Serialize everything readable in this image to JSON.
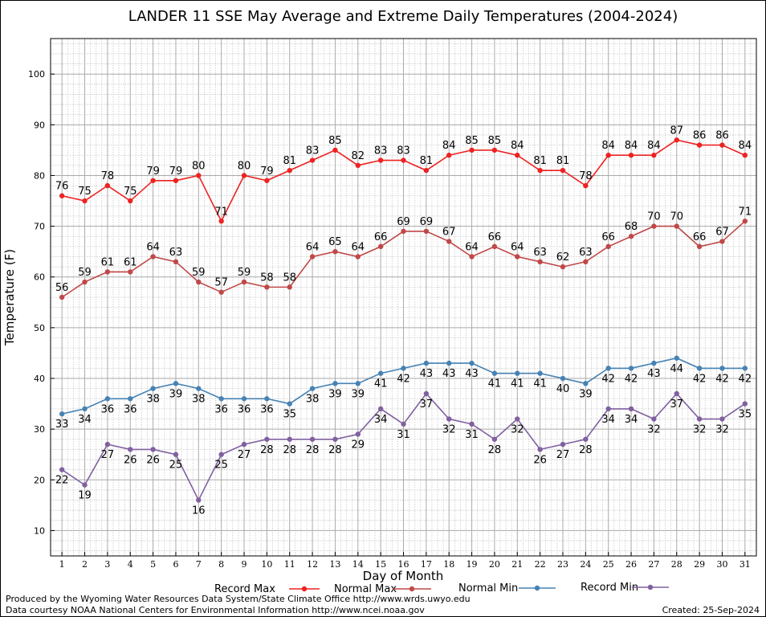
{
  "chart_data": {
    "type": "line",
    "title": "LANDER 11 SSE May Average and Extreme Daily Temperatures (2004-2024)",
    "xlabel": "Day of Month",
    "ylabel": "Temperature (F)",
    "x": [
      1,
      2,
      3,
      4,
      5,
      6,
      7,
      8,
      9,
      10,
      11,
      12,
      13,
      14,
      15,
      16,
      17,
      18,
      19,
      20,
      21,
      22,
      23,
      24,
      25,
      26,
      27,
      28,
      29,
      30,
      31
    ],
    "xlim": [
      0.5,
      31.5
    ],
    "ylim": [
      5,
      107
    ],
    "yticks": [
      10,
      20,
      30,
      40,
      50,
      60,
      70,
      80,
      90,
      100
    ],
    "grid": true,
    "legend_position": "bottom",
    "series": [
      {
        "name": "Record Max",
        "color": "#ee2222",
        "label_position": "above",
        "values": [
          76,
          75,
          78,
          75,
          79,
          79,
          80,
          71,
          80,
          79,
          81,
          83,
          85,
          82,
          83,
          83,
          81,
          84,
          85,
          85,
          84,
          81,
          81,
          78,
          84,
          84,
          84,
          87,
          86,
          86,
          84
        ]
      },
      {
        "name": "Normal Max",
        "color": "#c04848",
        "label_position": "above",
        "values": [
          56,
          59,
          61,
          61,
          64,
          63,
          59,
          57,
          59,
          58,
          58,
          64,
          65,
          64,
          66,
          69,
          69,
          67,
          64,
          66,
          64,
          63,
          62,
          63,
          66,
          68,
          70,
          70,
          66,
          67,
          71
        ]
      },
      {
        "name": "Normal Min",
        "color": "#4682b4",
        "label_position": "below",
        "values": [
          33,
          34,
          36,
          36,
          38,
          39,
          38,
          36,
          36,
          36,
          35,
          38,
          39,
          39,
          41,
          42,
          43,
          43,
          43,
          41,
          41,
          41,
          40,
          39,
          42,
          42,
          43,
          44,
          42,
          42,
          42
        ]
      },
      {
        "name": "Record Min",
        "color": "#8060a0",
        "label_position": "below",
        "values": [
          22,
          19,
          27,
          26,
          26,
          25,
          16,
          25,
          27,
          28,
          28,
          28,
          28,
          29,
          34,
          31,
          37,
          32,
          31,
          28,
          32,
          26,
          27,
          28,
          34,
          34,
          32,
          37,
          32,
          32,
          35
        ]
      }
    ]
  },
  "footer": {
    "produced_by": "Produced by the Wyoming Water Resources Data System/State Climate Office http://www.wrds.uwyo.edu",
    "courtesy": "Data courtesy NOAA National Centers for Environmental Information http://www.ncei.noaa.gov",
    "created": "Created:  25-Sep-2024"
  }
}
